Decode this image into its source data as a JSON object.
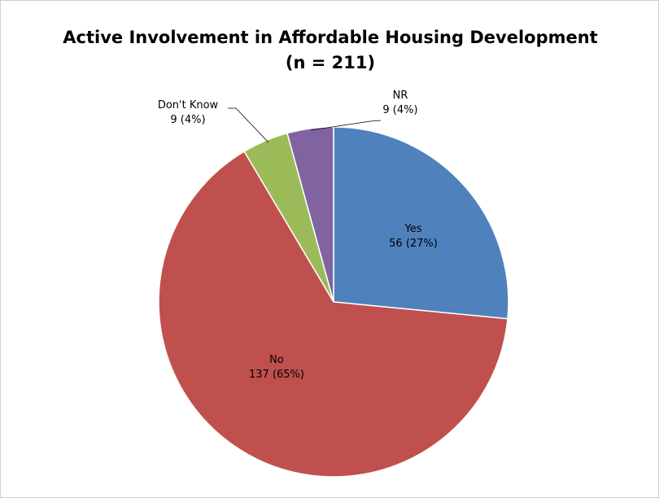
{
  "chart_data": {
    "type": "pie",
    "title": "Active Involvement in Affordable Housing Development",
    "subtitle": "(n = 211)",
    "slices": [
      {
        "name": "Yes",
        "value": 56,
        "label": "56 (27%)",
        "color": "#4F81BD"
      },
      {
        "name": "No",
        "value": 137,
        "label": "137 (65%)",
        "color": "#C0504D"
      },
      {
        "name": "Don't Know",
        "value": 9,
        "label": "9 (4%)",
        "color": "#9BBB59"
      },
      {
        "name": "NR",
        "value": 9,
        "label": "9 (4%)",
        "color": "#8064A2"
      }
    ]
  }
}
